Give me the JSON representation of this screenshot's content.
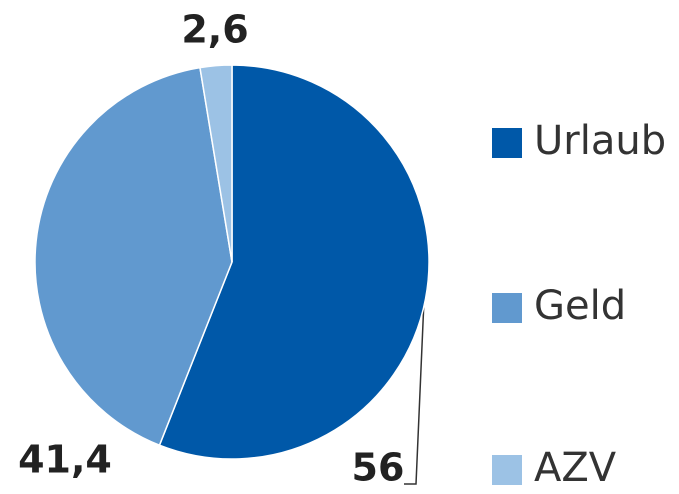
{
  "chart_data": {
    "type": "pie",
    "categories": [
      "Urlaub",
      "Geld",
      "AZV"
    ],
    "values": [
      56,
      41.4,
      2.6
    ],
    "value_labels": [
      "56",
      "41,4",
      "2,6"
    ],
    "colors": [
      "#0058a8",
      "#6199cf",
      "#9cc2e5"
    ],
    "legend": "right"
  }
}
